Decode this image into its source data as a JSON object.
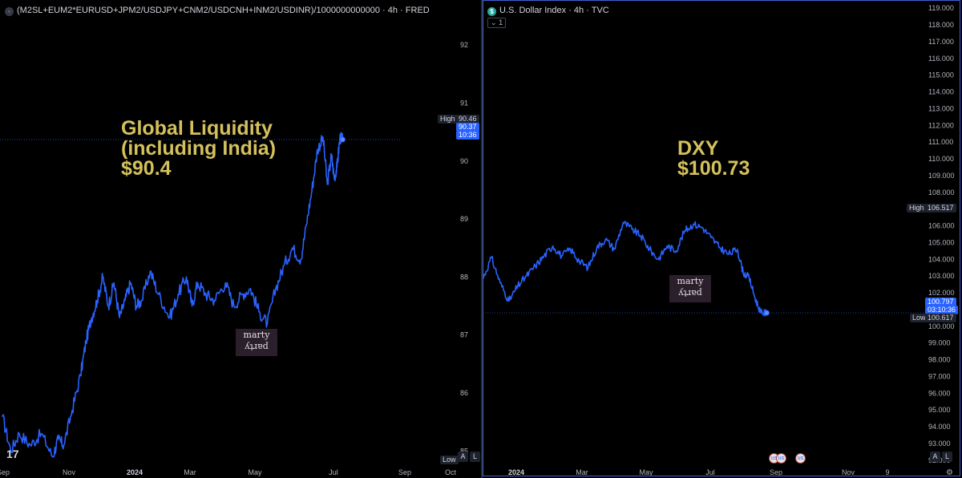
{
  "left": {
    "header_text": "(M2SL+EUM2*EURUSD+JPM2/USDJPY+CNM2/USDCNH+INM2/USDINR)/1000000000000 · 4h · FRED",
    "annotation": [
      "Global Liquidity",
      "(including India)",
      "$90.4"
    ],
    "high_label": "High",
    "high_value": "90.46",
    "last_value": "90.37",
    "last_time": "10:36",
    "low_label": "Low",
    "buttons": [
      "A",
      "L"
    ],
    "watermark": [
      "marty",
      "party"
    ]
  },
  "right": {
    "header_text": "U.S. Dollar Index · 4h · TVC",
    "badge": "$",
    "sub_badge": "1",
    "annotation": [
      "DXY",
      "$100.73"
    ],
    "high_label": "High",
    "high_value": "106.517",
    "last_value": "100.797",
    "last_time": "03:10:36",
    "low_label": "Low",
    "low_value": "100.617",
    "buttons": [
      "A",
      "L"
    ],
    "watermark": [
      "marty",
      "party"
    ]
  },
  "chart_data": [
    {
      "type": "line",
      "color": "#2962ff",
      "ylim": [
        84.7,
        92.5
      ],
      "y_ticks": [
        "85",
        "86",
        "87",
        "88",
        "89",
        "90",
        "91",
        "92"
      ],
      "x_ticks": [
        "Sep",
        "Nov",
        "2024",
        "Mar",
        "May",
        "Jul",
        "Sep",
        "Oct"
      ],
      "x_span": [
        0,
        14
      ],
      "x": [
        0,
        0.3,
        0.6,
        1.0,
        1.4,
        1.8,
        2.0,
        2.2,
        2.5,
        2.8,
        3.0,
        3.2,
        3.4,
        3.6,
        3.8,
        4.0,
        4.2,
        4.4,
        4.6,
        4.8,
        5.0,
        5.3,
        5.6,
        6.0,
        6.3,
        6.6,
        6.8,
        7.0,
        7.3,
        7.6,
        8.0,
        8.3,
        8.6,
        8.9,
        9.2,
        9.5,
        9.8,
        10.1,
        10.4,
        10.7,
        10.9,
        11.1,
        11.3,
        11.5,
        11.65,
        11.8,
        11.9,
        12.0,
        12.1,
        12.2
      ],
      "y": [
        85.6,
        85.0,
        85.3,
        85.1,
        85.3,
        84.9,
        85.2,
        85.1,
        85.7,
        86.3,
        86.9,
        87.3,
        87.6,
        88.0,
        87.5,
        87.9,
        87.3,
        87.6,
        87.9,
        87.5,
        87.6,
        88.1,
        87.7,
        87.3,
        87.7,
        88.0,
        87.5,
        87.9,
        87.7,
        87.6,
        87.9,
        87.5,
        87.7,
        87.8,
        87.4,
        87.2,
        87.8,
        88.2,
        88.5,
        88.3,
        88.9,
        89.5,
        90.2,
        90.4,
        89.6,
        90.1,
        89.7,
        89.9,
        90.4,
        90.37
      ]
    },
    {
      "type": "line",
      "color": "#2962ff",
      "ylim": [
        91.8,
        119.2
      ],
      "y_ticks": [
        "92.000",
        "93.000",
        "94.000",
        "95.000",
        "96.000",
        "97.000",
        "98.000",
        "99.000",
        "100.000",
        "101.000",
        "102.000",
        "103.000",
        "104.000",
        "105.000",
        "106.000",
        "107.000",
        "108.000",
        "109.000",
        "110.000",
        "111.000",
        "112.000",
        "113.000",
        "114.000",
        "115.000",
        "116.000",
        "117.000",
        "118.000",
        "119.000"
      ],
      "x_ticks": [
        "2024",
        "Mar",
        "May",
        "Jul",
        "Sep",
        "Nov",
        "9"
      ],
      "x_span": [
        0,
        15
      ],
      "x": [
        0,
        0.3,
        0.6,
        0.9,
        1.2,
        1.5,
        1.8,
        2.1,
        2.4,
        2.7,
        3.0,
        3.3,
        3.6,
        3.9,
        4.2,
        4.5,
        4.8,
        5.1,
        5.4,
        5.7,
        6.0,
        6.3,
        6.6,
        6.9,
        7.2,
        7.5,
        7.8,
        8.1,
        8.4,
        8.7,
        8.9,
        9.1,
        9.3,
        9.5,
        9.7
      ],
      "y": [
        102.8,
        104.1,
        102.6,
        101.5,
        102.4,
        103.0,
        103.6,
        104.2,
        104.8,
        104.2,
        104.6,
        103.9,
        103.5,
        104.7,
        105.2,
        104.6,
        106.2,
        105.8,
        105.4,
        104.6,
        104.0,
        104.8,
        104.5,
        105.7,
        106.1,
        105.9,
        105.3,
        104.7,
        104.3,
        104.6,
        103.2,
        102.9,
        101.7,
        100.8,
        100.797
      ]
    }
  ]
}
